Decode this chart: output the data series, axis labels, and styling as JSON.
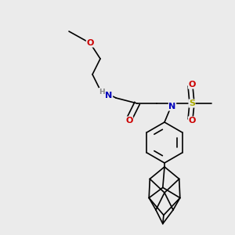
{
  "bg_color": "#ebebeb",
  "atom_colors": {
    "C": "#000000",
    "N": "#0000bb",
    "O": "#cc0000",
    "S": "#aaaa00",
    "H": "#888888"
  },
  "bond_color": "#000000",
  "bond_width": 1.2
}
